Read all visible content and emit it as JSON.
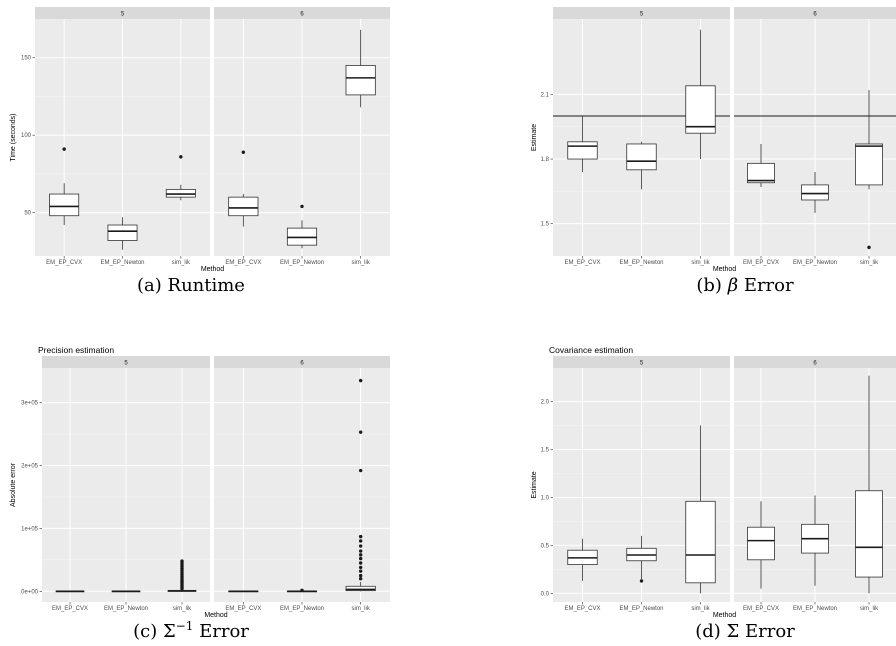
{
  "captions": {
    "a": "(a) Runtime",
    "b_prefix": "(b) ",
    "b_symbol": "β",
    "b_suffix": " Error",
    "c_prefix": "(c) Σ",
    "c_sup": "−1",
    "c_suffix": " Error",
    "d": "(d) Σ Error"
  },
  "chart_data": [
    {
      "id": "a",
      "type": "box",
      "title": "",
      "xlabel": "Method",
      "ylabel": "Time (seconds)",
      "facets": [
        "5",
        "6"
      ],
      "categories": [
        "EM_EP_CVX",
        "EM_EP_Newton",
        "sim_lik"
      ],
      "ylim": [
        22,
        175
      ],
      "yticks": [
        50,
        100,
        150
      ],
      "ytick_labels": [
        "50",
        "100",
        "150"
      ],
      "hline": null,
      "boxes": [
        [
          {
            "low": 42,
            "q1": 48,
            "median": 54,
            "q3": 62,
            "high": 69,
            "outliers": [
              91
            ]
          },
          {
            "low": 26,
            "q1": 32,
            "median": 38,
            "q3": 42,
            "high": 47,
            "outliers": []
          },
          {
            "low": 58,
            "q1": 60,
            "median": 62,
            "q3": 65,
            "high": 68,
            "outliers": [
              86
            ]
          }
        ],
        [
          {
            "low": 41,
            "q1": 48,
            "median": 53,
            "q3": 60,
            "high": 62,
            "outliers": [
              89
            ]
          },
          {
            "low": 27,
            "q1": 29,
            "median": 34,
            "q3": 40,
            "high": 45,
            "outliers": [
              54
            ]
          },
          {
            "low": 118,
            "q1": 126,
            "median": 137,
            "q3": 145,
            "high": 168,
            "outliers": []
          }
        ]
      ]
    },
    {
      "id": "b",
      "type": "box",
      "title": "",
      "xlabel": "Method",
      "ylabel": "Estimate",
      "facets": [
        "5",
        "6"
      ],
      "categories": [
        "EM_EP_CVX",
        "EM_EP_Newton",
        "sim_lik"
      ],
      "ylim": [
        1.35,
        2.45
      ],
      "yticks": [
        1.5,
        1.8,
        2.1
      ],
      "ytick_labels": [
        "1.5",
        "1.8",
        "2.1"
      ],
      "hline": 2.0,
      "boxes": [
        [
          {
            "low": 1.74,
            "q1": 1.8,
            "median": 1.86,
            "q3": 1.88,
            "high": 2.0,
            "outliers": []
          },
          {
            "low": 1.66,
            "q1": 1.75,
            "median": 1.79,
            "q3": 1.87,
            "high": 1.88,
            "outliers": []
          },
          {
            "low": 1.8,
            "q1": 1.92,
            "median": 1.95,
            "q3": 2.14,
            "high": 2.4,
            "outliers": []
          }
        ],
        [
          {
            "low": 1.67,
            "q1": 1.69,
            "median": 1.7,
            "q3": 1.78,
            "high": 1.87,
            "outliers": []
          },
          {
            "low": 1.55,
            "q1": 1.61,
            "median": 1.64,
            "q3": 1.68,
            "high": 1.74,
            "outliers": []
          },
          {
            "low": 1.66,
            "q1": 1.68,
            "median": 1.86,
            "q3": 1.87,
            "high": 2.12,
            "outliers": [
              1.39
            ]
          }
        ]
      ]
    },
    {
      "id": "c",
      "type": "box",
      "title": "Precision estimation",
      "xlabel": "Method",
      "ylabel": "Absolute error",
      "facets": [
        "5",
        "6"
      ],
      "categories": [
        "EM_EP_CVX",
        "EM_EP_Newton",
        "sim_lik"
      ],
      "ylim": [
        -17000,
        355000
      ],
      "yticks": [
        0,
        100000,
        200000,
        300000
      ],
      "ytick_labels": [
        "0e+00",
        "1e+05",
        "2e+05",
        "3e+05"
      ],
      "hline": null,
      "boxes": [
        [
          {
            "low": 0,
            "q1": 0,
            "median": 0,
            "q3": 500,
            "high": 800,
            "outliers": []
          },
          {
            "low": 0,
            "q1": 0,
            "median": 0,
            "q3": 500,
            "high": 800,
            "outliers": []
          },
          {
            "low": 0,
            "q1": 0,
            "median": 500,
            "q3": 1500,
            "high": 2500,
            "outliers": [
              4000,
              6000,
              8000,
              10000,
              12000,
              14000,
              16000,
              18000,
              21000,
              24000,
              27000,
              30000,
              33000,
              36000,
              39000,
              42000,
              45000,
              48000
            ]
          }
        ],
        [
          {
            "low": 0,
            "q1": 0,
            "median": 0,
            "q3": 500,
            "high": 800,
            "outliers": []
          },
          {
            "low": 0,
            "q1": 0,
            "median": 0,
            "q3": 500,
            "high": 800,
            "outliers": [
              1500
            ]
          },
          {
            "low": 0,
            "q1": 1000,
            "median": 3000,
            "q3": 8000,
            "high": 15000,
            "outliers": [
              20000,
              25000,
              32000,
              38000,
              45000,
              52000,
              58000,
              64000,
              72000,
              80000,
              87000,
              192000,
              253000,
              335000
            ]
          }
        ]
      ]
    },
    {
      "id": "d",
      "type": "box",
      "title": "Covariance estimation",
      "xlabel": "Method",
      "ylabel": "Estimate",
      "facets": [
        "5",
        "6"
      ],
      "categories": [
        "EM_EP_CVX",
        "EM_EP_Newton",
        "sim_lik"
      ],
      "ylim": [
        -0.09,
        2.35
      ],
      "yticks": [
        0,
        0.5,
        1.0,
        1.5,
        2.0
      ],
      "ytick_labels": [
        "0.0",
        "0.5",
        "1.0",
        "1.5",
        "2.0"
      ],
      "hline": null,
      "boxes": [
        [
          {
            "low": 0.13,
            "q1": 0.3,
            "median": 0.37,
            "q3": 0.45,
            "high": 0.57,
            "outliers": []
          },
          {
            "low": 0.15,
            "q1": 0.34,
            "median": 0.4,
            "q3": 0.47,
            "high": 0.6,
            "outliers": [
              0.13
            ]
          },
          {
            "low": 0.0,
            "q1": 0.11,
            "median": 0.4,
            "q3": 0.96,
            "high": 1.75,
            "outliers": []
          }
        ],
        [
          {
            "low": 0.05,
            "q1": 0.35,
            "median": 0.55,
            "q3": 0.69,
            "high": 0.96,
            "outliers": []
          },
          {
            "low": 0.08,
            "q1": 0.42,
            "median": 0.57,
            "q3": 0.72,
            "high": 1.02,
            "outliers": []
          },
          {
            "low": 0.0,
            "q1": 0.17,
            "median": 0.48,
            "q3": 1.07,
            "high": 2.27,
            "outliers": []
          }
        ]
      ]
    }
  ]
}
